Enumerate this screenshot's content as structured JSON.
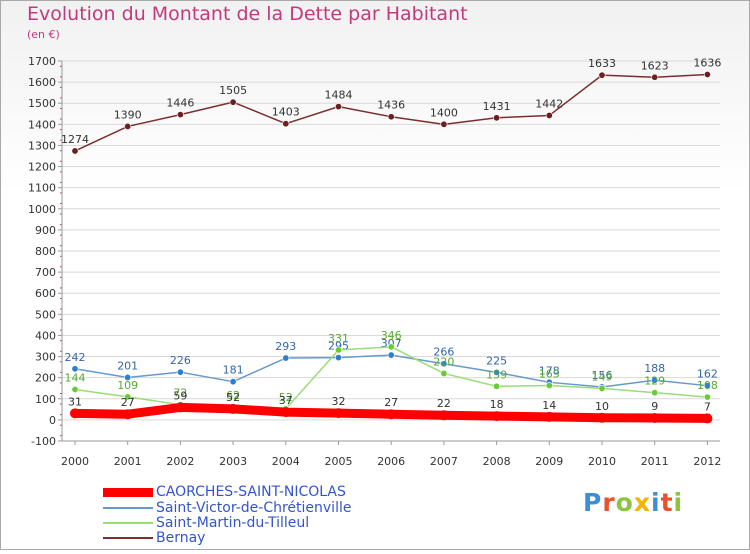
{
  "header": {
    "title": "Evolution du Montant de la Dette par Habitant",
    "unit": "(en €)"
  },
  "logo": {
    "text": "Proxiti",
    "colors": [
      "#3b8fd6",
      "#e8502e",
      "#8bc540",
      "#f5b400",
      "#3b8fd6",
      "#e8502e",
      "#8bc540"
    ]
  },
  "chart_data": {
    "type": "line",
    "title": "Evolution du Montant de la Dette par Habitant",
    "ylabel": "(en €)",
    "xlabel": "",
    "x": [
      "2000",
      "2001",
      "2002",
      "2003",
      "2004",
      "2005",
      "2006",
      "2007",
      "2008",
      "2009",
      "2010",
      "2011",
      "2012"
    ],
    "ylim": [
      -100,
      1700
    ],
    "yticks": [
      "-100",
      "0",
      "100",
      "200",
      "300",
      "400",
      "500",
      "600",
      "700",
      "800",
      "900",
      "1000",
      "1100",
      "1200",
      "1300",
      "1400",
      "1500",
      "1600",
      "1700"
    ],
    "grid": "horizontal",
    "legend_position": "bottom-left",
    "series": [
      {
        "name": "CAORCHES-SAINT-NICOLAS",
        "color": "#ff0000",
        "marker_color": "#ff0000",
        "label_color": "#333333",
        "emphasis": true,
        "values": [
          31,
          27,
          59,
          52,
          37,
          32,
          27,
          22,
          18,
          14,
          10,
          9,
          7
        ],
        "labels": [
          "31",
          "27",
          "59",
          "52",
          "37",
          "32",
          "27",
          "22",
          "18",
          "14",
          "10",
          "9",
          "7"
        ]
      },
      {
        "name": "Saint-Victor-de-Chrétienville",
        "color": "#6699cc",
        "marker_color": "#2f7fd1",
        "label_color": "#3366aa",
        "values": [
          242,
          201,
          226,
          181,
          293,
          295,
          307,
          266,
          225,
          178,
          156,
          188,
          162
        ],
        "labels": [
          "242",
          "201",
          "226",
          "181",
          "293",
          "295",
          "307",
          "266",
          "225",
          "178",
          "156",
          "188",
          "162"
        ]
      },
      {
        "name": "Saint-Martin-du-Tilleul",
        "color": "#99dd77",
        "marker_color": "#66cc33",
        "label_color": "#55aa33",
        "values": [
          144,
          109,
          72,
          62,
          52,
          331,
          346,
          220,
          159,
          163,
          149,
          129,
          108
        ],
        "labels": [
          "144",
          "109",
          "72",
          "62",
          "52",
          "331",
          "346",
          "220",
          "159",
          "163",
          "149",
          "129",
          "108"
        ]
      },
      {
        "name": "Bernay",
        "color": "#7a2f2f",
        "marker_color": "#6b1f1f",
        "label_color": "#333333",
        "values": [
          1274,
          1390,
          1446,
          1505,
          1403,
          1484,
          1436,
          1400,
          1431,
          1442,
          1633,
          1623,
          1636
        ],
        "labels": [
          "1274",
          "1390",
          "1446",
          "1505",
          "1403",
          "1484",
          "1436",
          "1400",
          "1431",
          "1442",
          "1633",
          "1623",
          "1636"
        ]
      }
    ]
  }
}
